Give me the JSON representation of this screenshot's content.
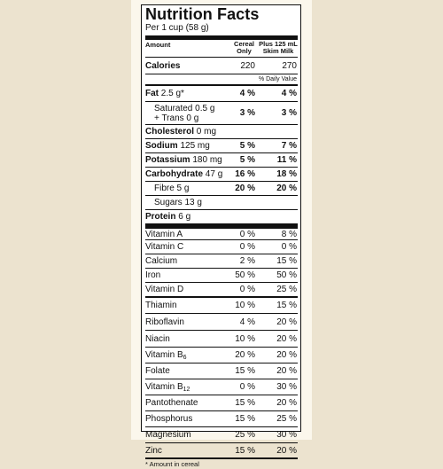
{
  "title": "Nutrition Facts",
  "serving": "Per 1 cup (58 g)",
  "headers": {
    "amount": "Amount",
    "col1": [
      "Cereal",
      "Only"
    ],
    "col2": [
      "Plus 125 mL",
      "Skim Milk"
    ]
  },
  "calories": {
    "label": "Calories",
    "c1": "220",
    "c2": "270"
  },
  "daily_value_label": "% Daily Value",
  "nutrients": [
    {
      "bold": "Fat",
      "rest": " 2.5 g*",
      "c1": "4 %",
      "c2": "4 %",
      "h": 19
    },
    {
      "bold": "",
      "rest": "Saturated 0.5 g",
      "rest2": "+ Trans 0 g",
      "c1": "3 %",
      "c2": "3 %",
      "indent": true,
      "h": 26
    },
    {
      "bold": "Cholesterol",
      "rest": " 0 mg",
      "c1": "",
      "c2": "",
      "h": 16
    },
    {
      "bold": "Sodium",
      "rest": " 125 mg",
      "c1": "5 %",
      "c2": "7 %",
      "h": 16
    },
    {
      "bold": "Potassium",
      "rest": " 180 mg",
      "c1": "5 %",
      "c2": "11 %",
      "h": 16
    },
    {
      "bold": "Carbohydrate",
      "rest": " 47 g",
      "c1": "16 %",
      "c2": "18 %",
      "h": 16
    },
    {
      "bold": "",
      "rest": "Fibre 5 g",
      "c1": "20 %",
      "c2": "20 %",
      "indent": true,
      "h": 16
    },
    {
      "bold": "",
      "rest": "Sugars 13 g",
      "c1": "",
      "c2": "",
      "indent": true,
      "h": 16
    },
    {
      "bold": "Protein",
      "rest": " 6 g",
      "c1": "",
      "c2": "",
      "h": 16
    }
  ],
  "vitamins": [
    {
      "name": "Vitamin A",
      "c1": "0 %",
      "c2": "8 %",
      "h": 16
    },
    {
      "name": "Vitamin C",
      "c1": "0 %",
      "c2": "0 %",
      "h": 16
    },
    {
      "name": "Calcium",
      "c1": "2 %",
      "c2": "15 %",
      "h": 16
    },
    {
      "name": "Iron",
      "c1": "50 %",
      "c2": "50 %",
      "h": 16
    },
    {
      "name": "Vitamin D",
      "c1": "0 %",
      "c2": "25 %",
      "h": 16
    },
    {
      "name": "Thiamin",
      "c1": "10 %",
      "c2": "15 %",
      "h": 19
    },
    {
      "name": "Riboflavin",
      "c1": "4 %",
      "c2": "20 %",
      "h": 19
    },
    {
      "name": "Niacin",
      "c1": "10 %",
      "c2": "20 %",
      "h": 19
    },
    {
      "name": "Vitamin B",
      "sub": "6",
      "c1": "20 %",
      "c2": "20 %",
      "h": 18
    },
    {
      "name": "Folate",
      "c1": "15 %",
      "c2": "20 %",
      "h": 18
    },
    {
      "name": "Vitamin B",
      "sub": "12",
      "c1": "0 %",
      "c2": "30 %",
      "h": 18
    },
    {
      "name": "Pantothenate",
      "c1": "15 %",
      "c2": "20 %",
      "h": 18
    },
    {
      "name": "Phosphorus",
      "c1": "15 %",
      "c2": "25 %",
      "h": 18
    },
    {
      "name": "Magnesium",
      "c1": "25 %",
      "c2": "30 %",
      "h": 18
    },
    {
      "name": "Zinc",
      "c1": "15 %",
      "c2": "20 %",
      "h": 17
    }
  ],
  "footnote": "* Amount in cereal"
}
